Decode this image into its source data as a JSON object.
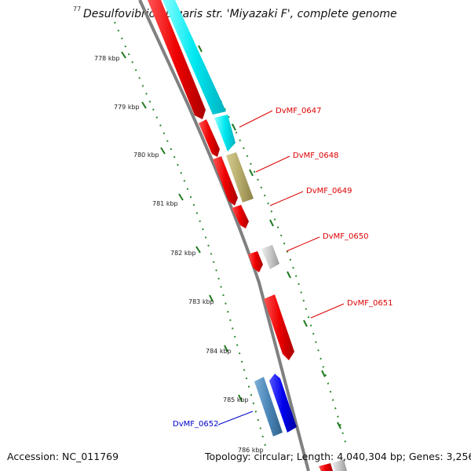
{
  "title": "Desulfovibrio vulgaris str. 'Miyazaki F', complete genome",
  "title_tick": "77",
  "footer": {
    "accession": "Accession: NC_011769",
    "summary": "Topology: circular; Length: 4,040,304 bp; Genes: 3,256"
  },
  "kbp_labels": [
    "778 kbp",
    "779 kbp",
    "780 kbp",
    "781 kbp",
    "782 kbp",
    "783 kbp",
    "784 kbp",
    "785 kbp",
    "786 kbp"
  ],
  "gene_labels": [
    {
      "id": "DvMF_0647",
      "color": "#dd0000"
    },
    {
      "id": "DvMF_0648",
      "color": "#dd0000"
    },
    {
      "id": "DvMF_0649",
      "color": "#dd0000"
    },
    {
      "id": "DvMF_0650",
      "color": "#dd0000"
    },
    {
      "id": "DvMF_0651",
      "color": "#dd0000"
    },
    {
      "id": "DvMF_0652",
      "color": "#0000cc"
    }
  ],
  "colors": {
    "cds": "#ee0000",
    "trna_like": "#00e5ee",
    "khaki": "#b5aa6a",
    "grey_feature": "#c8c8c8",
    "steel_blue": "#4a86b8",
    "blue": "#0000ee",
    "backbone": "#808080",
    "tick_green": "#228822"
  }
}
